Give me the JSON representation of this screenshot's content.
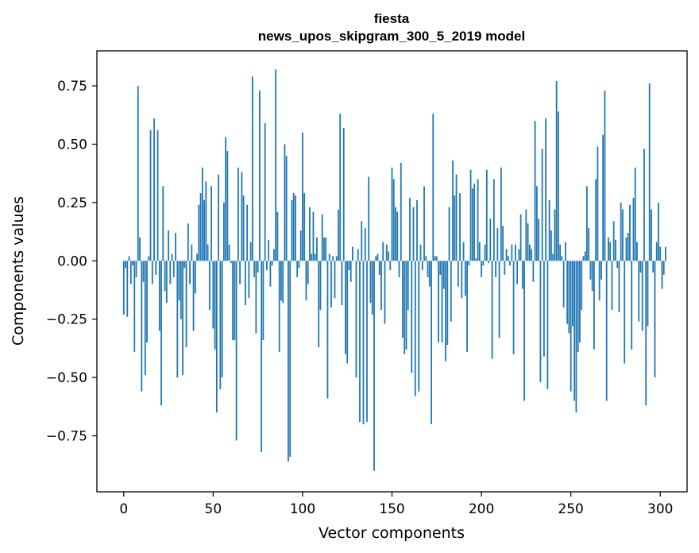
{
  "chart_data": {
    "type": "bar",
    "title": "fiesta",
    "subtitle": "news_upos_skipgram_300_5_2019 model",
    "xlabel": "Vector components",
    "ylabel": "Components values",
    "xlim": [
      -15,
      315
    ],
    "ylim": [
      -0.99,
      0.9
    ],
    "xticks": [
      0,
      50,
      100,
      150,
      200,
      250,
      300
    ],
    "yticks": [
      -0.75,
      -0.5,
      -0.25,
      0.0,
      0.25,
      0.5,
      0.75
    ],
    "ytick_labels": [
      "−0.75",
      "−0.50",
      "−0.25",
      "0.00",
      "0.25",
      "0.50",
      "0.75"
    ],
    "bar_color": "#1f77b4",
    "series": [
      {
        "name": "fiesta",
        "values": [
          -0.23,
          -0.03,
          -0.24,
          0.02,
          -0.1,
          -0.02,
          -0.39,
          -0.07,
          0.75,
          0.1,
          -0.56,
          -0.09,
          -0.49,
          -0.35,
          0.02,
          0.56,
          -0.1,
          0.61,
          -0.06,
          0.56,
          -0.3,
          -0.62,
          0.32,
          -0.13,
          -0.18,
          0.13,
          -0.1,
          0.03,
          -0.07,
          0.12,
          -0.5,
          -0.17,
          -0.25,
          -0.49,
          -0.03,
          -0.37,
          0.16,
          -0.1,
          0.07,
          -0.3,
          -0.14,
          0.03,
          0.24,
          0.29,
          0.4,
          0.26,
          0.34,
          0.07,
          -0.21,
          0.32,
          -0.29,
          -0.38,
          -0.65,
          0.37,
          -0.55,
          -0.5,
          0.25,
          0.53,
          0.47,
          0.07,
          -0.01,
          -0.34,
          -0.34,
          -0.77,
          0.4,
          -0.1,
          0.38,
          0.28,
          -0.19,
          0.24,
          -0.16,
          0.08,
          0.79,
          -0.07,
          -0.31,
          -0.05,
          0.73,
          -0.82,
          -0.34,
          0.59,
          -0.04,
          0.09,
          -0.11,
          -0.02,
          0.05,
          0.82,
          0.21,
          -0.39,
          -0.17,
          -0.18,
          0.5,
          0.45,
          -0.86,
          -0.84,
          0.26,
          0.29,
          0.28,
          -0.07,
          -0.03,
          0.13,
          0.55,
          0.29,
          -0.17,
          -0.1,
          0.23,
          0.03,
          0.21,
          0.03,
          0.1,
          -0.37,
          -0.21,
          0.2,
          0.1,
          0.1,
          -0.59,
          0.03,
          -0.2,
          0.02,
          -0.16,
          0.02,
          0.22,
          0.63,
          -0.19,
          0.57,
          -0.4,
          -0.44,
          -0.04,
          -0.09,
          0.06,
          0.0,
          -0.5,
          0.05,
          -0.69,
          0.17,
          -0.7,
          0.14,
          -0.69,
          0.36,
          -0.18,
          -0.23,
          -0.9,
          0.02,
          0.03,
          -0.06,
          -0.21,
          0.08,
          -0.27,
          0.07,
          0.04,
          -0.04,
          0.4,
          0.35,
          0.23,
          0.21,
          -0.07,
          0.42,
          -0.33,
          -0.4,
          -0.38,
          -0.21,
          0.27,
          -0.48,
          0.23,
          -0.58,
          0.26,
          -0.56,
          0.07,
          -0.04,
          0.32,
          0.02,
          -0.07,
          -0.11,
          -0.7,
          0.63,
          0.02,
          0.02,
          -0.35,
          -0.06,
          -0.35,
          -0.12,
          -0.43,
          -0.36,
          0.23,
          -0.26,
          0.43,
          0.28,
          0.37,
          -0.11,
          0.29,
          -0.16,
          0.08,
          -0.15,
          -0.39,
          -0.02,
          0.39,
          0.31,
          0.33,
          0.01,
          0.35,
          0.08,
          -0.07,
          -0.02,
          0.07,
          0.39,
          -0.01,
          0.18,
          -0.42,
          0.35,
          -0.07,
          0.14,
          -0.33,
          0.4,
          0.15,
          -0.06,
          0.05,
          0.02,
          -0.02,
          0.07,
          -0.4,
          0.07,
          -0.1,
          0.05,
          0.2,
          -0.12,
          -0.6,
          0.22,
          0.16,
          0.07,
          0.05,
          -0.09,
          0.6,
          0.32,
          0.18,
          -0.52,
          0.48,
          -0.41,
          0.61,
          -0.55,
          0.26,
          0.13,
          0.03,
          0.22,
          0.77,
          0.64,
          0.07,
          0.02,
          -0.2,
          0.08,
          -0.27,
          -0.31,
          -0.56,
          -0.28,
          -0.6,
          -0.65,
          -0.39,
          -0.35,
          -0.21,
          0.02,
          0.04,
          0.32,
          0.14,
          -0.08,
          -0.13,
          -0.38,
          0.35,
          0.49,
          -0.17,
          -0.08,
          0.54,
          0.73,
          -0.6,
          0.1,
          0.08,
          -0.21,
          0.17,
          0.09,
          -0.03,
          -0.22,
          0.25,
          0.22,
          -0.44,
          0.1,
          0.12,
          0.24,
          -0.38,
          0.27,
          0.4,
          0.08,
          -0.26,
          -0.05,
          -0.3,
          0.48,
          -0.62,
          -0.28,
          0.76,
          0.22,
          -0.05,
          -0.5,
          0.08,
          0.25,
          0.06,
          -0.12,
          -0.06,
          0.06
        ]
      }
    ]
  }
}
